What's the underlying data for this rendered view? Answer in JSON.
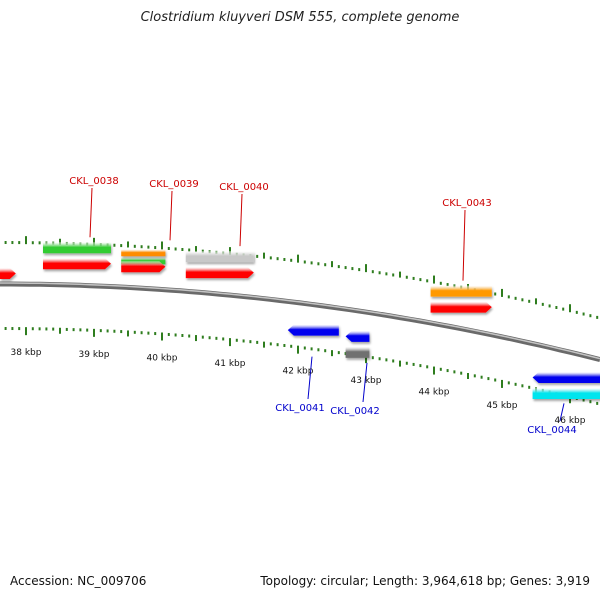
{
  "title": "Clostridium kluyveri DSM 555, complete genome",
  "footer": {
    "accession": "Accession: NC_009706",
    "summary": "Topology: circular; Length: 3,964,618 bp; Genes: 3,919"
  },
  "colors": {
    "background": "#ffffff",
    "backbone": "#888888",
    "tick": "#2e7d1e",
    "forward_label": "#cc0000",
    "reverse_label": "#0000cc"
  },
  "scale_labels": [
    "38 kbp",
    "39 kbp",
    "40 kbp",
    "41 kbp",
    "42 kbp",
    "43 kbp",
    "44 kbp",
    "45 kbp",
    "46 kbp"
  ],
  "genes": [
    {
      "label": "CKL_0038",
      "strand": "forward",
      "start_kbp": 38.25,
      "end_kbp": 39.25,
      "features": [
        "CDS",
        "gene"
      ],
      "cds_color": "#33cc33"
    },
    {
      "label": "CKL_0039",
      "strand": "forward",
      "start_kbp": 39.4,
      "end_kbp": 40.05,
      "features": [
        "CDS",
        "misc",
        "gene"
      ],
      "cds_color": "#33cc33"
    },
    {
      "label": "CKL_0040",
      "strand": "forward",
      "start_kbp": 40.35,
      "end_kbp": 41.35,
      "features": [
        "CDS",
        "gene"
      ],
      "cds_color": "#c8c8c8"
    },
    {
      "label": "CKL_0041",
      "strand": "reverse",
      "start_kbp": 41.85,
      "end_kbp": 42.6,
      "features": [
        "gene"
      ]
    },
    {
      "label": "CKL_0042",
      "strand": "reverse",
      "start_kbp": 42.7,
      "end_kbp": 43.05,
      "features": [
        "gene",
        "CDS"
      ],
      "cds_color": "#707070"
    },
    {
      "label": "CKL_0043",
      "strand": "forward",
      "start_kbp": 43.95,
      "end_kbp": 44.85,
      "features": [
        "CDS",
        "gene"
      ],
      "cds_color": "#ff9900"
    },
    {
      "label": "CKL_0044",
      "strand": "reverse",
      "start_kbp": 45.45,
      "end_kbp": 46.6,
      "features": [
        "gene",
        "CDS"
      ],
      "cds_color": "#00e5ee"
    }
  ],
  "partial_gene": {
    "strand": "forward",
    "start_kbp": 37.3,
    "end_kbp": 37.85
  }
}
